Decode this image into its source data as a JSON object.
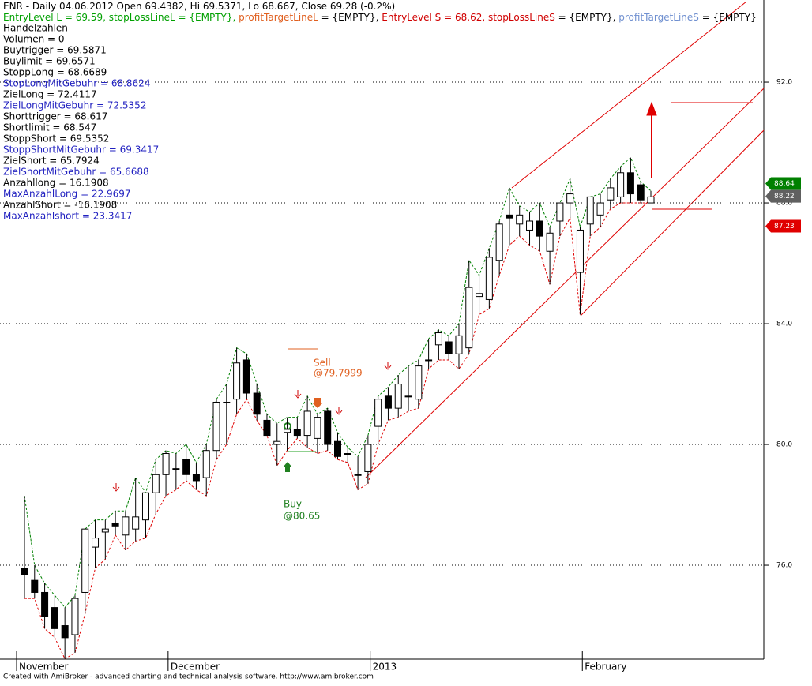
{
  "chart_data": {
    "type": "candlestick",
    "header": [
      [
        {
          "text": "ENR - Daily 04.06.2012 Open 69.4382, Hi 69.5371, Lo 68.667, Close 69.28 (-0.2%)",
          "color": "#000000"
        }
      ],
      [
        {
          "text": "EntryLevel L = 69.59, ",
          "color": "#00a000"
        },
        {
          "text": "stopLossLineL = {EMPTY}, ",
          "color": "#00a000"
        },
        {
          "text": "profitTargetLineL",
          "color": "#e06020"
        },
        {
          "text": " = {EMPTY}, ",
          "color": "#000000"
        },
        {
          "text": "EntryLevel S = 68.62, ",
          "color": "#d00000"
        },
        {
          "text": "stopLossLineS",
          "color": "#d00000"
        },
        {
          "text": " = {EMPTY}, ",
          "color": "#000000"
        },
        {
          "text": "profitTargetLineS",
          "color": "#7090d0"
        },
        {
          "text": " = {EMPTY}",
          "color": "#000000"
        }
      ]
    ],
    "info_lines": [
      {
        "text": "Handelzahlen",
        "color": "#000000"
      },
      {
        "text": "Volumen = 0",
        "color": "#000000"
      },
      {
        "text": "Buytrigger = 69.5871",
        "color": "#000000"
      },
      {
        "text": "Buylimit = 69.6571",
        "color": "#000000"
      },
      {
        "text": "StoppLong = 68.6689",
        "color": "#000000"
      },
      {
        "text": "StopLongMitGebuhr = 68.8624",
        "color": "#2020c0"
      },
      {
        "text": "ZielLong = 72.4117",
        "color": "#000000"
      },
      {
        "text": "ZielLongMitGebuhr = 72.5352",
        "color": "#2020c0"
      },
      {
        "text": "Shorttrigger = 68.617",
        "color": "#000000"
      },
      {
        "text": "Shortlimit = 68.547",
        "color": "#000000"
      },
      {
        "text": "StoppShort = 69.5352",
        "color": "#000000"
      },
      {
        "text": "StoppShortMitGebuhr = 69.3417",
        "color": "#2020c0"
      },
      {
        "text": "ZielShort = 65.7924",
        "color": "#000000"
      },
      {
        "text": "ZielShortMitGebuhr = 65.6688",
        "color": "#2020c0"
      },
      {
        "text": "Anzahllong = 16.1908",
        "color": "#000000"
      },
      {
        "text": "MaxAnzahlLong = 22.9697",
        "color": "#2020c0"
      },
      {
        "text": "AnzahlShort = -16.1908",
        "color": "#000000"
      },
      {
        "text": "MaxAnzahlshort = 23.3417",
        "color": "#2020c0"
      }
    ],
    "categories": [
      "November",
      null,
      null,
      null,
      null,
      null,
      null,
      null,
      null,
      null,
      null,
      null,
      null,
      null,
      null,
      "December",
      null,
      null,
      null,
      null,
      null,
      null,
      null,
      null,
      null,
      null,
      null,
      null,
      null,
      null,
      null,
      null,
      null,
      null,
      null,
      "2013",
      null,
      null,
      null,
      null,
      null,
      null,
      null,
      null,
      null,
      null,
      null,
      null,
      null,
      null,
      null,
      null,
      null,
      null,
      null,
      null,
      "February",
      null,
      null,
      null,
      null,
      null,
      null
    ],
    "open": [
      75.9,
      75.5,
      75.1,
      74.6,
      74.0,
      73.7,
      75.1,
      76.6,
      77.1,
      77.4,
      77.0,
      77.2,
      77.5,
      78.4,
      79.0,
      79.2,
      79.5,
      79.0,
      78.9,
      79.8,
      81.4,
      81.5,
      82.8,
      81.7,
      80.8,
      80.0,
      80.4,
      80.5,
      80.3,
      80.2,
      81.1,
      80.1,
      79.7,
      79.0,
      79.1,
      80.6,
      81.6,
      81.2,
      81.6,
      81.5,
      82.8,
      83.3,
      83.4,
      83.0,
      83.2,
      84.9,
      84.8,
      86.1,
      87.6,
      87.3,
      87.1,
      87.4,
      86.4,
      87.4,
      88.0,
      85.7,
      87.3,
      87.6,
      88.1,
      88.2,
      89.0,
      88.6,
      88.0
    ],
    "high": [
      78.3,
      76.0,
      75.4,
      75.0,
      74.6,
      75.0,
      77.2,
      77.5,
      77.5,
      77.8,
      77.8,
      78.9,
      78.4,
      79.5,
      79.8,
      79.7,
      80.0,
      79.4,
      80.0,
      81.5,
      82.0,
      83.2,
      83.0,
      82.0,
      81.0,
      80.7,
      80.9,
      80.9,
      81.6,
      81.0,
      81.2,
      80.4,
      79.9,
      79.6,
      80.3,
      81.6,
      81.9,
      82.3,
      82.6,
      82.8,
      83.5,
      83.8,
      83.6,
      84.0,
      86.1,
      85.6,
      86.5,
      87.4,
      88.5,
      87.9,
      87.7,
      88.0,
      87.2,
      88.0,
      88.8,
      87.2,
      88.2,
      88.3,
      88.8,
      89.2,
      89.5,
      88.7,
      88.4
    ],
    "low": [
      74.9,
      74.9,
      73.9,
      73.6,
      72.9,
      73.1,
      74.4,
      75.9,
      76.2,
      77.0,
      76.5,
      76.8,
      76.9,
      77.7,
      78.3,
      78.5,
      78.8,
      78.5,
      78.3,
      79.5,
      80.0,
      81.0,
      81.5,
      80.8,
      80.3,
      79.3,
      79.8,
      80.2,
      79.9,
      79.7,
      79.8,
      79.5,
      79.4,
      78.5,
      78.7,
      80.0,
      80.8,
      80.9,
      81.1,
      81.2,
      82.5,
      82.8,
      82.8,
      82.5,
      83.0,
      84.3,
      84.5,
      85.6,
      86.6,
      86.9,
      86.6,
      86.4,
      85.3,
      86.9,
      87.5,
      84.3,
      86.9,
      87.2,
      87.8,
      88.0,
      88.0,
      88.0,
      88.0
    ],
    "close": [
      75.7,
      75.1,
      74.3,
      73.9,
      73.6,
      74.9,
      77.2,
      76.9,
      77.2,
      77.3,
      77.6,
      77.6,
      78.4,
      79.0,
      79.7,
      79.2,
      79.0,
      78.8,
      79.8,
      81.4,
      81.4,
      82.7,
      81.7,
      81.0,
      80.3,
      80.1,
      80.5,
      80.3,
      81.1,
      80.9,
      80.0,
      79.6,
      79.7,
      79.0,
      80.0,
      81.5,
      81.2,
      82.0,
      81.6,
      82.6,
      82.8,
      83.7,
      83.0,
      83.6,
      85.2,
      85.0,
      86.2,
      87.3,
      87.5,
      87.6,
      87.4,
      86.9,
      87.0,
      88.0,
      88.3,
      87.1,
      88.2,
      88.0,
      88.5,
      89.0,
      88.3,
      88.1,
      88.2
    ],
    "ylim": [
      72.89,
      94.72
    ],
    "yticks": [
      {
        "value": 76,
        "label": "76.0"
      },
      {
        "value": 80,
        "label": "80.0"
      },
      {
        "value": 84,
        "label": "84.0"
      },
      {
        "value": 88,
        "label": "88.0"
      },
      {
        "value": 92,
        "label": "92.0"
      }
    ],
    "grid": true,
    "price_markers": [
      {
        "value": 88.64,
        "color": "#008000"
      },
      {
        "value": 88.22,
        "color": "#606060"
      },
      {
        "value": 87.23,
        "color": "#e00000"
      }
    ],
    "annotations": [
      {
        "text": "Sell",
        "color": "#e06020"
      },
      {
        "text": "@79.7999",
        "color": "#e06020"
      },
      {
        "text": "Buy",
        "color": "#208020"
      },
      {
        "text": "@80.65",
        "color": "#208020"
      }
    ],
    "footer": "Created with AmiBroker - advanced charting and technical analysis software. http://www.amibroker.com"
  }
}
